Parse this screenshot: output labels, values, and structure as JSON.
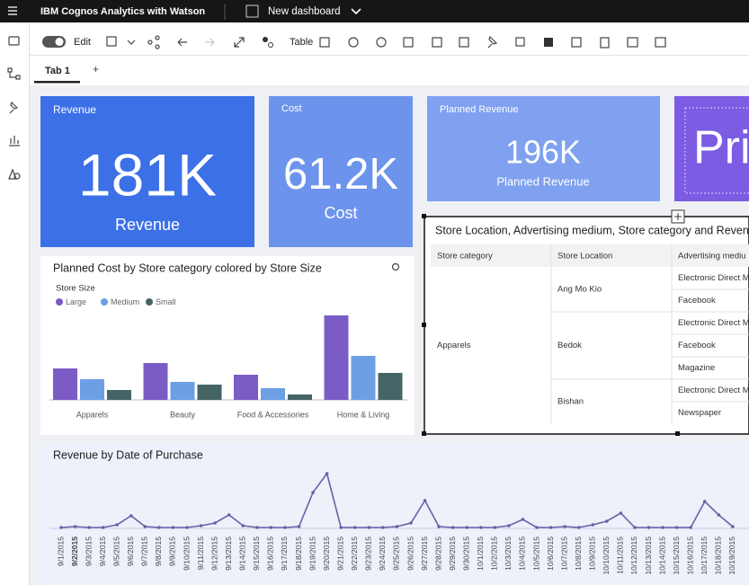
{
  "header": {
    "product": "IBM Cognos Analytics with Watson",
    "dashboard": "New dashboard"
  },
  "toolbar": {
    "edit": "Edit",
    "table": "Table"
  },
  "tabs": [
    "Tab 1"
  ],
  "tiles": [
    {
      "title": "Revenue",
      "value": "181K",
      "label": "Revenue"
    },
    {
      "title": "Cost",
      "value": "61.2K",
      "label": "Cost"
    },
    {
      "title": "Planned Revenue",
      "value": "196K",
      "label": "Planned Revenue"
    },
    {
      "value": "Pri"
    }
  ],
  "bar_chart": {
    "type": "bar",
    "title": "Planned Cost by Store category colored by Store Size",
    "legend_title": "Store Size",
    "categories": [
      "Apparels",
      "Beauty",
      "Food & Accessories",
      "Home & Living"
    ],
    "series": [
      {
        "name": "Large",
        "color": "#7b5cc6",
        "values": [
          35,
          41,
          28,
          94
        ]
      },
      {
        "name": "Medium",
        "color": "#6d9fe4",
        "values": [
          23,
          20,
          13,
          49
        ]
      },
      {
        "name": "Small",
        "color": "#456466",
        "values": [
          11,
          17,
          6,
          30
        ]
      }
    ],
    "ylim": [
      0,
      100
    ]
  },
  "table": {
    "title": "Store Location, Advertising medium, Store category and Revenu",
    "columns": [
      "Store category",
      "Store Location",
      "Advertising mediu"
    ],
    "category": "Apparels",
    "locations": [
      {
        "name": "Ang Mo Kio",
        "media": [
          "Electronic Direct M",
          "Facebook"
        ]
      },
      {
        "name": "Bedok",
        "media": [
          "Electronic Direct M",
          "Facebook",
          "Magazine"
        ]
      },
      {
        "name": "Bishan",
        "media": [
          "Electronic Direct M",
          "Newspaper"
        ]
      }
    ]
  },
  "line_chart": {
    "type": "line",
    "title": "Revenue by Date of Purchase",
    "color": "#6a60a8",
    "categories": [
      "9/1/2015",
      "9/2/2015",
      "9/3/2015",
      "9/4/2015",
      "9/5/2015",
      "9/6/2015",
      "9/7/2015",
      "9/8/2015",
      "9/9/2015",
      "9/10/2015",
      "9/11/2015",
      "9/12/2015",
      "9/13/2015",
      "9/14/2015",
      "9/15/2015",
      "9/16/2015",
      "9/17/2015",
      "9/18/2015",
      "9/19/2015",
      "9/20/2015",
      "9/21/2015",
      "9/22/2015",
      "9/23/2015",
      "9/24/2015",
      "9/25/2015",
      "9/26/2015",
      "9/27/2015",
      "9/28/2015",
      "9/29/2015",
      "9/30/2015",
      "10/1/2015",
      "10/2/2015",
      "10/3/2015",
      "10/4/2015",
      "10/5/2015",
      "10/6/2015",
      "10/7/2015",
      "10/8/2015",
      "10/9/2015",
      "10/10/2015",
      "10/11/2015",
      "10/12/2015",
      "10/13/2015",
      "10/14/2015",
      "10/15/2015",
      "10/16/2015",
      "10/17/2015",
      "10/18/2015",
      "10/19/2015"
    ],
    "values": [
      1,
      2,
      1,
      1,
      4,
      14,
      2,
      1,
      1,
      1,
      3,
      6,
      15,
      3,
      1,
      1,
      1,
      2,
      40,
      61,
      1,
      1,
      1,
      1,
      2,
      6,
      31,
      2,
      1,
      1,
      1,
      1,
      3,
      10,
      1,
      1,
      2,
      1,
      4,
      8,
      17,
      1,
      1,
      1,
      1,
      1,
      30,
      15,
      2
    ],
    "ylim": [
      0,
      70
    ]
  }
}
